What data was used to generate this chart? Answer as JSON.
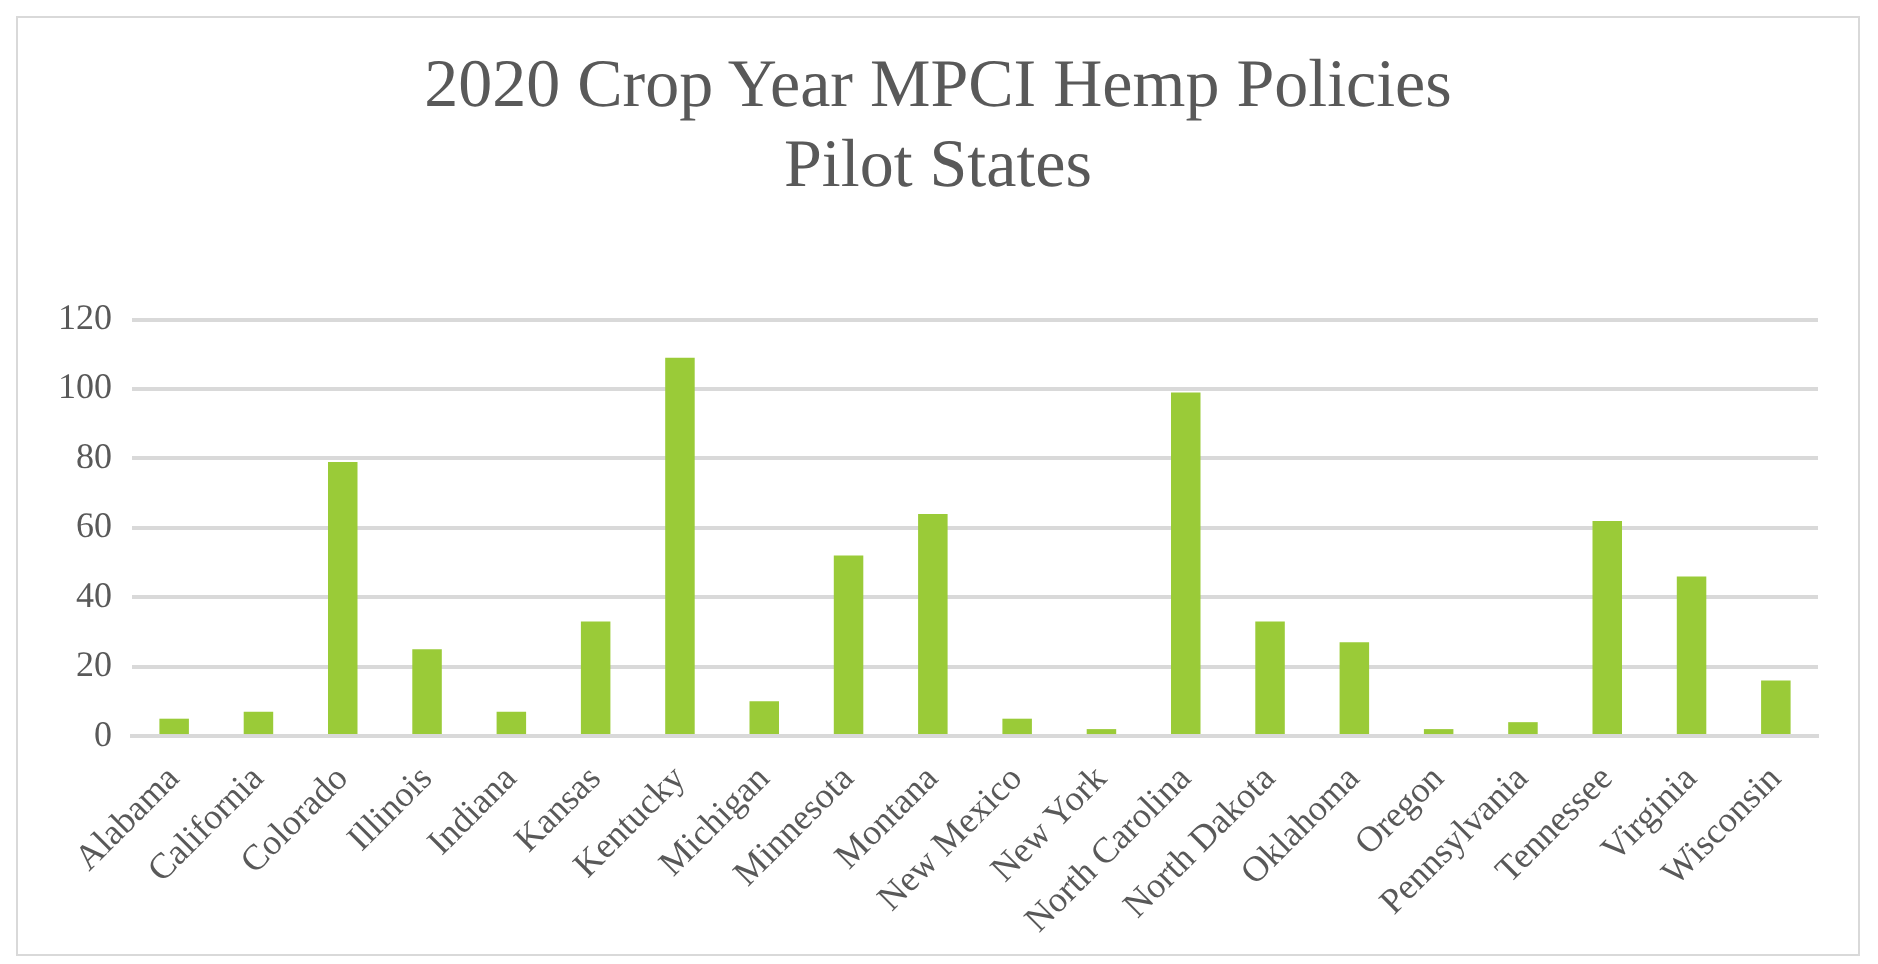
{
  "chart_data": {
    "type": "bar",
    "title": "2020 Crop Year MPCI Hemp Policies\nPilot States",
    "categories": [
      "Alabama",
      "California",
      "Colorado",
      "Illinois",
      "Indiana",
      "Kansas",
      "Kentucky",
      "Michigan",
      "Minnesota",
      "Montana",
      "New Mexico",
      "New York",
      "North Carolina",
      "North Dakota",
      "Oklahoma",
      "Oregon",
      "Pennsylvania",
      "Tennessee",
      "Virginia",
      "Wisconsin"
    ],
    "values": [
      5,
      7,
      79,
      25,
      7,
      33,
      109,
      10,
      52,
      64,
      5,
      2,
      99,
      33,
      27,
      2,
      4,
      62,
      46,
      16
    ],
    "color": "#9acb38",
    "ylim": [
      0,
      120
    ],
    "yticks": [
      0,
      20,
      40,
      60,
      80,
      100,
      120
    ],
    "grid": "y"
  }
}
